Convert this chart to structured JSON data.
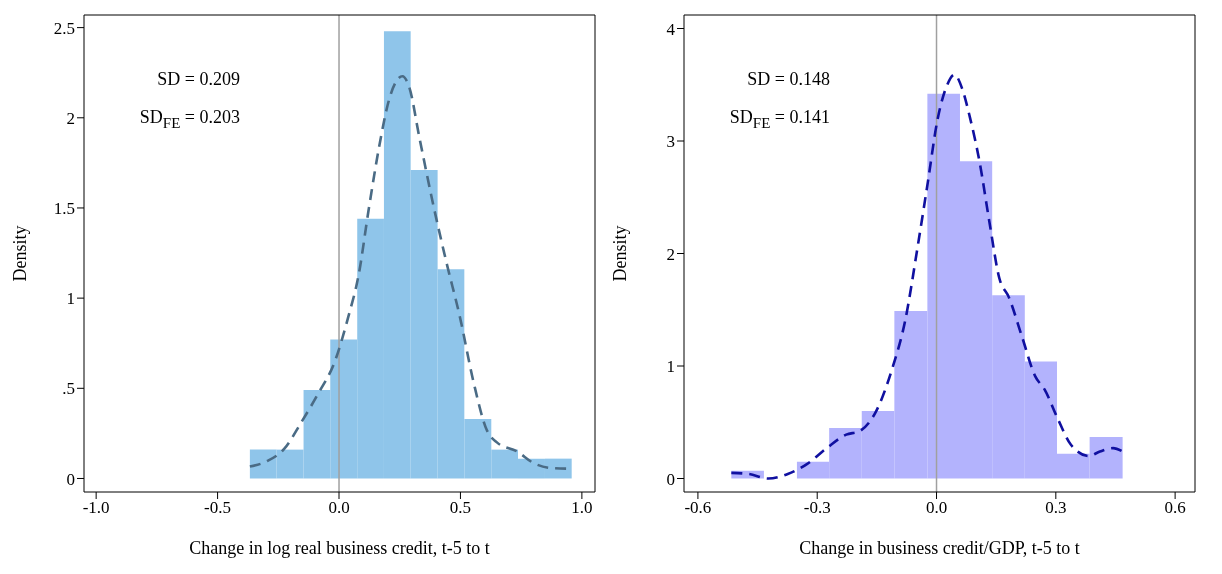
{
  "chart_data": [
    {
      "type": "histogram",
      "xlabel": "Change in log real business credit, t-5 to t",
      "ylabel": "Density",
      "xlim": [
        -1.05,
        1.054
      ],
      "ylim": [
        -0.075,
        2.57
      ],
      "xticks": [
        {
          "value": -1,
          "label": "-1.0"
        },
        {
          "value": -0.5,
          "label": "-0.5"
        },
        {
          "value": 0,
          "label": "0.0"
        },
        {
          "value": 0.5,
          "label": "0.5"
        },
        {
          "value": 1,
          "label": "1.0"
        }
      ],
      "yticks": [
        0,
        {
          "value": 0.5,
          "label": ".5"
        },
        1,
        1.5,
        2,
        2.5
      ],
      "annotations": [
        "SD = 0.209",
        "SD$_{FE}$ = 0.203"
      ],
      "ref_lines": [
        {
          "axis": "x",
          "value": 0,
          "color": "#a0a0a0"
        }
      ],
      "series": [
        {
          "color": "#8fc5ea",
          "bins": [
            -0.367,
            -0.257,
            -0.146,
            -0.036,
            0.075,
            0.185,
            0.295,
            0.406,
            0.516,
            0.627,
            0.737,
            0.848,
            0.958
          ],
          "values": [
            0.16,
            0.16,
            0.49,
            0.77,
            1.44,
            2.48,
            1.71,
            1.16,
            0.33,
            0.16,
            0.11,
            0.11
          ]
        },
        {
          "type": "line",
          "color": "#4a6b85",
          "line_style": "dashed",
          "marker": "none",
          "x": [
            -0.367,
            -0.295,
            -0.225,
            -0.156,
            -0.086,
            -0.017,
            0.039,
            0.081,
            0.122,
            0.164,
            0.206,
            0.261,
            0.289,
            0.331,
            0.386,
            0.442,
            0.497,
            0.553,
            0.608,
            0.65,
            0.733,
            0.803,
            0.872,
            0.954
          ],
          "values": [
            0.066,
            0.097,
            0.165,
            0.31,
            0.47,
            0.65,
            0.9,
            1.13,
            1.49,
            1.83,
            2.1,
            2.23,
            2.17,
            1.89,
            1.53,
            1.2,
            0.9,
            0.54,
            0.27,
            0.2,
            0.15,
            0.084,
            0.058,
            0.054
          ]
        }
      ]
    },
    {
      "type": "histogram",
      "xlabel": "Change in business credit/GDP, t-5 to t",
      "ylabel": "Density",
      "xlim": [
        -0.635,
        0.65
      ],
      "ylim": [
        -0.12,
        4.12
      ],
      "xticks": [
        {
          "value": -0.6,
          "label": "-0.6"
        },
        {
          "value": -0.3,
          "label": "-0.3"
        },
        {
          "value": 0,
          "label": "0.0"
        },
        {
          "value": 0.3,
          "label": "0.3"
        },
        {
          "value": 0.6,
          "label": "0.6"
        }
      ],
      "yticks": [
        0,
        1,
        2,
        3,
        4
      ],
      "annotations": [
        "SD = 0.148",
        "SD$_{FE}$ = 0.141"
      ],
      "ref_lines": [
        {
          "axis": "x",
          "value": 0,
          "color": "#a0a0a0"
        }
      ],
      "series": [
        {
          "color": "#b3b3fd",
          "bins": [
            -0.516,
            -0.434,
            -0.351,
            -0.27,
            -0.188,
            -0.106,
            -0.023,
            0.059,
            0.14,
            0.222,
            0.303,
            0.385,
            0.468
          ],
          "values": [
            0.07,
            0,
            0.15,
            0.45,
            0.6,
            1.49,
            3.42,
            2.82,
            1.63,
            1.04,
            0.22,
            0.37
          ]
        },
        {
          "type": "line",
          "color": "#1010a0",
          "line_style": "dashed",
          "marker": "none",
          "x": [
            -0.516,
            -0.472,
            -0.423,
            -0.374,
            -0.325,
            -0.276,
            -0.227,
            -0.194,
            -0.153,
            -0.112,
            -0.079,
            -0.047,
            -0.022,
            0.002,
            0.027,
            0.045,
            0.064,
            0.084,
            0.109,
            0.133,
            0.158,
            0.182,
            0.215,
            0.248,
            0.272,
            0.305,
            0.338,
            0.383,
            0.411,
            0.444,
            0.468
          ],
          "values": [
            0.05,
            0.04,
            0,
            0.04,
            0.13,
            0.27,
            0.39,
            0.42,
            0.59,
            0.97,
            1.4,
            2.07,
            2.63,
            3.18,
            3.5,
            3.59,
            3.47,
            3.21,
            2.8,
            2.28,
            1.78,
            1.61,
            1.26,
            0.91,
            0.79,
            0.53,
            0.3,
            0.2,
            0.24,
            0.27,
            0.24
          ]
        }
      ]
    }
  ]
}
